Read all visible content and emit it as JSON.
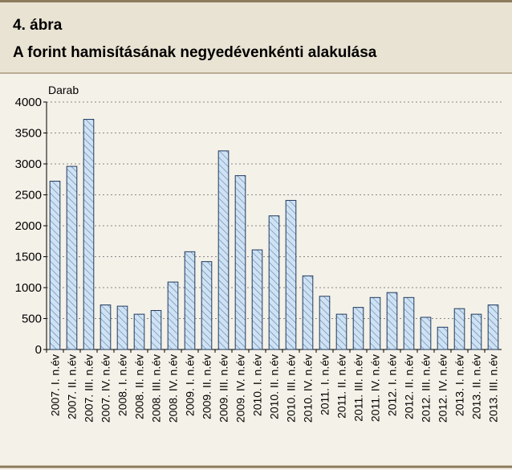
{
  "header": {
    "number": "4. ábra",
    "title": "A forint hamisításának negyedévenkénti alakulása"
  },
  "chart_data": {
    "type": "bar",
    "y_label": "Darab",
    "categories": [
      "2007. I. n.év",
      "2007. II. n.év",
      "2007. III. n.év",
      "2007. IV. n.év",
      "2008. I. n.év",
      "2008. II. n.év",
      "2008. III. n.év",
      "2008. IV. n.év",
      "2009. I. n.év",
      "2009. II. n.év",
      "2009. III. n.év",
      "2009. IV. n.év",
      "2010. I. n.év",
      "2010. II. n.év",
      "2010. III. n.év",
      "2010. IV. n.év",
      "2011. I. n.év",
      "2011. II. n.év",
      "2011. III. n.év",
      "2011. IV. n.év",
      "2012. I. n.év",
      "2012. II. n.év",
      "2012. III. n.év",
      "2012. IV. n.év",
      "2013. I. n.év",
      "2013. II. n.év",
      "2013. III. n.év"
    ],
    "values": [
      2720,
      2960,
      3720,
      720,
      700,
      570,
      630,
      1090,
      1580,
      1420,
      3210,
      2810,
      1610,
      2160,
      2410,
      1190,
      860,
      570,
      680,
      840,
      920,
      840,
      520,
      360,
      660,
      570,
      720
    ],
    "color": "#cfe2f3",
    "ylim": [
      0,
      4000
    ],
    "yticks": [
      0,
      500,
      1000,
      1500,
      2000,
      2500,
      3000,
      3500,
      4000
    ],
    "grid": true
  }
}
